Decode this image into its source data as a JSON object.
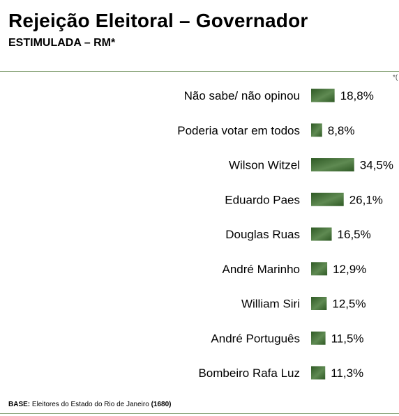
{
  "header": {
    "title": "Rejeição Eleitoral – Governador",
    "subtitle": "ESTIMULADA – RM*",
    "corner_mark": "*("
  },
  "footer": {
    "base_label": "BASE:",
    "base_text": " Eleitores do Estado do Rio de Janeiro ",
    "base_count": "(1680)"
  },
  "colors": {
    "bar_dark": "#2f5a25",
    "bar_light": "#5f8a52",
    "rule": "#8aa57a"
  },
  "chart_data": {
    "type": "bar",
    "orientation": "horizontal",
    "title": "Rejeição Eleitoral – Governador",
    "subtitle": "ESTIMULADA – RM*",
    "categories": [
      "Não sabe/ não opinou",
      "Poderia votar em todos",
      "Wilson Witzel",
      "Eduardo Paes",
      "Douglas Ruas",
      "André Marinho",
      "William Siri",
      "André Português",
      "Bombeiro Rafa Luz"
    ],
    "values": [
      18.8,
      8.8,
      34.5,
      26.1,
      16.5,
      12.9,
      12.5,
      11.5,
      11.3
    ],
    "value_labels": [
      "18,8%",
      "8,8%",
      "34,5%",
      "26,1%",
      "16,5%",
      "12,9%",
      "12,5%",
      "11,5%",
      "11,3%"
    ],
    "unit": "%",
    "xlim": [
      0,
      100
    ],
    "grid": false,
    "legend": "none"
  }
}
